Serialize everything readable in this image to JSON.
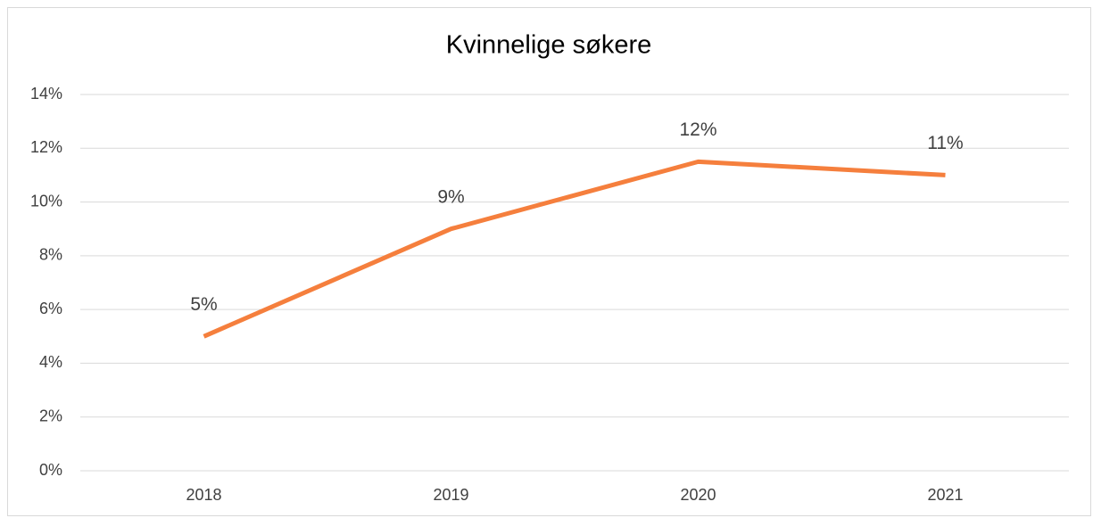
{
  "chart_data": {
    "type": "line",
    "title": "Kvinnelige søkere",
    "categories": [
      "2018",
      "2019",
      "2020",
      "2021"
    ],
    "series": [
      {
        "name": "Kvinnelige søkere",
        "color": "#f57f3d",
        "values": [
          5,
          9,
          11.5,
          11
        ],
        "value_labels": [
          "5%",
          "9%",
          "12%",
          "11%"
        ]
      }
    ],
    "ylim": [
      0,
      14
    ],
    "yticks": [
      {
        "value": 0,
        "label": "0%"
      },
      {
        "value": 2,
        "label": "2%"
      },
      {
        "value": 4,
        "label": "4%"
      },
      {
        "value": 6,
        "label": "6%"
      },
      {
        "value": 8,
        "label": "8%"
      },
      {
        "value": 10,
        "label": "10%"
      },
      {
        "value": 12,
        "label": "12%"
      },
      {
        "value": 14,
        "label": "14%"
      }
    ],
    "grid": true
  }
}
